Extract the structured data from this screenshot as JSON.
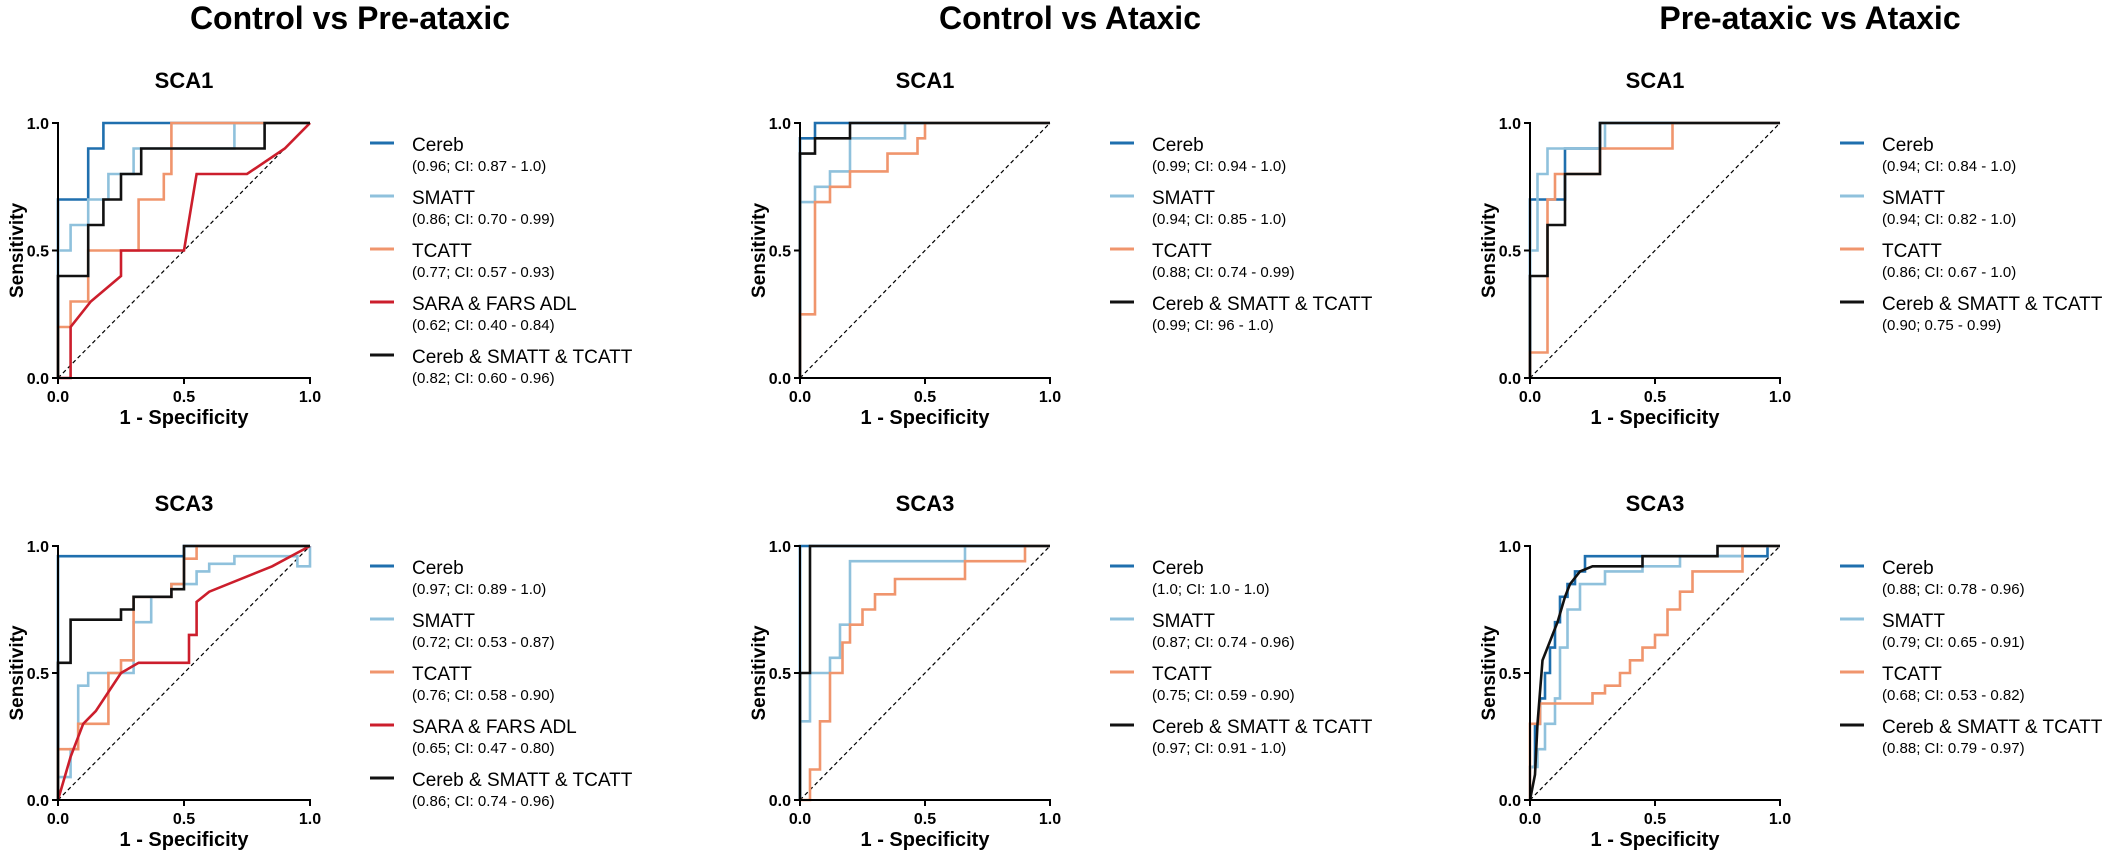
{
  "column_titles": [
    "Control vs Pre-ataxic",
    "Control vs Ataxic",
    "Pre-ataxic vs Ataxic"
  ],
  "colors": {
    "Cereb": "#1f6fae",
    "SMATT": "#8fc1dc",
    "TCATT": "#f0956d",
    "SARA & FARS ADL": "#cc1e2c",
    "Cereb & SMATT & TCATT": "#111111"
  },
  "chart_data": [
    {
      "type": "line",
      "title": "SCA1",
      "xlabel": "1 - Specificity",
      "ylabel": "Sensitivity",
      "xlim": [
        0,
        1
      ],
      "ylim": [
        0,
        1
      ],
      "xticks": [
        "0.0",
        "0.5",
        "1.0"
      ],
      "yticks": [
        "0.0",
        "0.5",
        "1.0"
      ],
      "diagonal": true,
      "legend_position": "right",
      "series": [
        {
          "name": "Cereb",
          "ci": "(0.96; CI: 0.87 - 1.0)",
          "x": [
            0,
            0,
            0.12,
            0.12,
            0.18,
            0.18,
            1
          ],
          "y": [
            0,
            0.7,
            0.7,
            0.9,
            0.9,
            1.0,
            1.0
          ]
        },
        {
          "name": "SMATT",
          "ci": "(0.86; CI: 0.70 - 0.99)",
          "x": [
            0,
            0,
            0.05,
            0.05,
            0.12,
            0.12,
            0.2,
            0.2,
            0.3,
            0.3,
            0.7,
            0.7,
            1
          ],
          "y": [
            0,
            0.5,
            0.5,
            0.6,
            0.6,
            0.7,
            0.7,
            0.8,
            0.8,
            0.9,
            0.9,
            1.0,
            1.0
          ]
        },
        {
          "name": "TCATT",
          "ci": "(0.77; CI: 0.57 - 0.93)",
          "x": [
            0,
            0,
            0.05,
            0.05,
            0.12,
            0.12,
            0.2,
            0.2,
            0.32,
            0.32,
            0.42,
            0.42,
            0.45,
            0.45,
            1
          ],
          "y": [
            0,
            0.2,
            0.2,
            0.3,
            0.3,
            0.5,
            0.5,
            0.5,
            0.5,
            0.7,
            0.7,
            0.8,
            0.8,
            1.0,
            1.0
          ]
        },
        {
          "name": "SARA & FARS ADL",
          "ci": "(0.62; CI: 0.40 - 0.84)",
          "x": [
            0,
            0.05,
            0.05,
            0.13,
            0.25,
            0.25,
            0.5,
            0.55,
            0.75,
            0.9,
            1
          ],
          "y": [
            0,
            0,
            0.2,
            0.3,
            0.4,
            0.5,
            0.5,
            0.8,
            0.8,
            0.9,
            1.0
          ]
        },
        {
          "name": "Cereb & SMATT & TCATT",
          "ci": "(0.82; CI: 0.60 - 0.96)",
          "x": [
            0,
            0,
            0.12,
            0.12,
            0.18,
            0.18,
            0.25,
            0.25,
            0.33,
            0.33,
            0.7,
            0.7,
            0.82,
            0.82,
            1
          ],
          "y": [
            0,
            0.4,
            0.4,
            0.6,
            0.6,
            0.7,
            0.7,
            0.8,
            0.8,
            0.9,
            0.9,
            0.9,
            0.9,
            1.0,
            1.0
          ]
        }
      ]
    },
    {
      "type": "line",
      "title": "SCA1",
      "xlabel": "1 - Specificity",
      "ylabel": "Sensitivity",
      "xlim": [
        0,
        1
      ],
      "ylim": [
        0,
        1
      ],
      "xticks": [
        "0.0",
        "0.5",
        "1.0"
      ],
      "yticks": [
        "0.0",
        "0.5",
        "1.0"
      ],
      "diagonal": true,
      "legend_position": "right",
      "series": [
        {
          "name": "Cereb",
          "ci": "(0.99; CI: 0.94 - 1.0)",
          "x": [
            0,
            0,
            0.06,
            0.06,
            1
          ],
          "y": [
            0,
            0.94,
            0.94,
            1.0,
            1.0
          ]
        },
        {
          "name": "SMATT",
          "ci": "(0.94; CI: 0.85 - 1.0)",
          "x": [
            0,
            0,
            0.06,
            0.06,
            0.12,
            0.12,
            0.2,
            0.2,
            0.42,
            0.42,
            1
          ],
          "y": [
            0,
            0.69,
            0.69,
            0.75,
            0.75,
            0.81,
            0.81,
            0.94,
            0.94,
            1.0,
            1.0
          ]
        },
        {
          "name": "TCATT",
          "ci": "(0.88; CI: 0.74 - 0.99)",
          "x": [
            0,
            0,
            0.06,
            0.06,
            0.12,
            0.12,
            0.2,
            0.2,
            0.35,
            0.35,
            0.47,
            0.47,
            0.5,
            0.5,
            1
          ],
          "y": [
            0,
            0.25,
            0.25,
            0.69,
            0.69,
            0.75,
            0.75,
            0.81,
            0.81,
            0.88,
            0.88,
            0.94,
            0.94,
            1.0,
            1.0
          ]
        },
        {
          "name": "Cereb & SMATT & TCATT",
          "ci": "(0.99; CI: 96 - 1.0)",
          "x": [
            0,
            0,
            0.06,
            0.06,
            0.12,
            0.12,
            0.2,
            0.2,
            1
          ],
          "y": [
            0,
            0.88,
            0.88,
            0.94,
            0.94,
            0.94,
            0.94,
            1.0,
            1.0
          ]
        }
      ]
    },
    {
      "type": "line",
      "title": "SCA1",
      "xlabel": "1 - Specificity",
      "ylabel": "Sensitivity",
      "xlim": [
        0,
        1
      ],
      "ylim": [
        0,
        1
      ],
      "xticks": [
        "0.0",
        "0.5",
        "1.0"
      ],
      "yticks": [
        "0.0",
        "0.5",
        "1.0"
      ],
      "diagonal": true,
      "legend_position": "right",
      "series": [
        {
          "name": "Cereb",
          "ci": "(0.94; CI: 0.84 - 1.0)",
          "x": [
            0,
            0,
            0.14,
            0.14,
            0.28,
            0.28,
            1
          ],
          "y": [
            0,
            0.7,
            0.7,
            0.9,
            0.9,
            1.0,
            1.0
          ]
        },
        {
          "name": "SMATT",
          "ci": "(0.94; CI: 0.82 - 1.0)",
          "x": [
            0,
            0,
            0.03,
            0.03,
            0.07,
            0.07,
            0.3,
            0.3,
            1
          ],
          "y": [
            0,
            0.5,
            0.5,
            0.8,
            0.8,
            0.9,
            0.9,
            1.0,
            1.0
          ]
        },
        {
          "name": "TCATT",
          "ci": "(0.86; CI: 0.67 - 1.0)",
          "x": [
            0,
            0,
            0.07,
            0.07,
            0.1,
            0.1,
            0.28,
            0.28,
            0.57,
            0.57,
            1
          ],
          "y": [
            0,
            0.1,
            0.1,
            0.7,
            0.7,
            0.8,
            0.8,
            0.9,
            0.9,
            1.0,
            1.0
          ]
        },
        {
          "name": "Cereb & SMATT & TCATT",
          "ci": "(0.90; 0.75 - 0.99)",
          "x": [
            0,
            0,
            0.07,
            0.07,
            0.14,
            0.14,
            0.28,
            0.28,
            1
          ],
          "y": [
            0,
            0.4,
            0.4,
            0.6,
            0.6,
            0.8,
            0.8,
            1.0,
            1.0
          ]
        }
      ]
    },
    {
      "type": "line",
      "title": "SCA3",
      "xlabel": "1 - Specificity",
      "ylabel": "Sensitivity",
      "xlim": [
        0,
        1
      ],
      "ylim": [
        0,
        1
      ],
      "xticks": [
        "0.0",
        "0.5",
        "1.0"
      ],
      "yticks": [
        "0.0",
        "0.5",
        "1.0"
      ],
      "diagonal": true,
      "legend_position": "right",
      "series": [
        {
          "name": "Cereb",
          "ci": "(0.97; CI: 0.89 - 1.0)",
          "x": [
            0,
            0,
            0.5,
            0.5,
            1
          ],
          "y": [
            0,
            0.96,
            0.96,
            1.0,
            1.0
          ]
        },
        {
          "name": "SMATT",
          "ci": "(0.72; CI: 0.53 - 0.87)",
          "x": [
            0,
            0,
            0.05,
            0.05,
            0.08,
            0.08,
            0.12,
            0.12,
            0.2,
            0.2,
            0.3,
            0.3,
            0.37,
            0.37,
            0.45,
            0.45,
            0.55,
            0.55,
            0.6,
            0.6,
            0.7,
            0.7,
            0.95,
            0.95,
            1.0,
            1.0
          ],
          "y": [
            0,
            0.09,
            0.09,
            0.2,
            0.2,
            0.45,
            0.45,
            0.5,
            0.5,
            0.5,
            0.5,
            0.7,
            0.7,
            0.8,
            0.8,
            0.85,
            0.85,
            0.9,
            0.9,
            0.93,
            0.93,
            0.96,
            0.96,
            0.92,
            0.92,
            1.0
          ]
        },
        {
          "name": "TCATT",
          "ci": "(0.76; CI: 0.58 - 0.90)",
          "x": [
            0,
            0,
            0.08,
            0.08,
            0.2,
            0.2,
            0.25,
            0.25,
            0.3,
            0.3,
            0.45,
            0.45,
            0.5,
            0.5,
            0.55,
            0.55,
            0.6,
            0.6,
            1
          ],
          "y": [
            0,
            0.2,
            0.2,
            0.3,
            0.3,
            0.5,
            0.5,
            0.55,
            0.55,
            0.8,
            0.8,
            0.85,
            0.85,
            0.95,
            0.95,
            1.0,
            1.0,
            1.0,
            1.0
          ]
        },
        {
          "name": "SARA & FARS ADL",
          "ci": "(0.65; CI: 0.47 - 0.80)",
          "x": [
            0,
            0.05,
            0.05,
            0.1,
            0.15,
            0.25,
            0.32,
            0.42,
            0.52,
            0.52,
            0.55,
            0.55,
            0.6,
            0.85,
            1
          ],
          "y": [
            0,
            0.17,
            0.17,
            0.3,
            0.35,
            0.5,
            0.54,
            0.54,
            0.54,
            0.65,
            0.65,
            0.78,
            0.82,
            0.92,
            1.0
          ]
        },
        {
          "name": "Cereb & SMATT & TCATT",
          "ci": "(0.86; CI: 0.74 - 0.96)",
          "x": [
            0,
            0,
            0.05,
            0.05,
            0.15,
            0.15,
            0.25,
            0.25,
            0.3,
            0.3,
            0.45,
            0.45,
            0.5,
            0.5,
            1
          ],
          "y": [
            0,
            0.54,
            0.54,
            0.71,
            0.71,
            0.71,
            0.71,
            0.75,
            0.75,
            0.8,
            0.8,
            0.83,
            0.83,
            1.0,
            1.0
          ]
        }
      ]
    },
    {
      "type": "line",
      "title": "SCA3",
      "xlabel": "1 - Specificity",
      "ylabel": "Sensitivity",
      "xlim": [
        0,
        1
      ],
      "ylim": [
        0,
        1
      ],
      "xticks": [
        "0.0",
        "0.5",
        "1.0"
      ],
      "yticks": [
        "0.0",
        "0.5",
        "1.0"
      ],
      "diagonal": true,
      "legend_position": "right",
      "series": [
        {
          "name": "Cereb",
          "ci": "(1.0; CI: 1.0 - 1.0)",
          "x": [
            0,
            0,
            1
          ],
          "y": [
            0,
            1.0,
            1.0
          ]
        },
        {
          "name": "SMATT",
          "ci": "(0.87; CI: 0.74 - 0.96)",
          "x": [
            0,
            0,
            0.04,
            0.04,
            0.08,
            0.08,
            0.12,
            0.12,
            0.16,
            0.16,
            0.2,
            0.2,
            0.66,
            0.66,
            1
          ],
          "y": [
            0,
            0.31,
            0.31,
            0.5,
            0.5,
            0.5,
            0.5,
            0.56,
            0.56,
            0.69,
            0.69,
            0.94,
            0.94,
            1.0,
            1.0
          ]
        },
        {
          "name": "TCATT",
          "ci": "(0.75; CI: 0.59 - 0.90)",
          "x": [
            0,
            0.04,
            0.04,
            0.08,
            0.08,
            0.12,
            0.12,
            0.17,
            0.17,
            0.2,
            0.2,
            0.25,
            0.25,
            0.3,
            0.3,
            0.38,
            0.38,
            0.6,
            0.6,
            0.66,
            0.66,
            0.8,
            0.8,
            0.9,
            0.9,
            1
          ],
          "y": [
            0,
            0,
            0.12,
            0.12,
            0.31,
            0.31,
            0.5,
            0.5,
            0.62,
            0.62,
            0.69,
            0.69,
            0.75,
            0.75,
            0.81,
            0.81,
            0.87,
            0.87,
            0.87,
            0.87,
            0.94,
            0.94,
            0.94,
            0.94,
            1.0,
            1.0
          ]
        },
        {
          "name": "Cereb & SMATT & TCATT",
          "ci": "(0.97; CI: 0.91 - 1.0)",
          "x": [
            0,
            0,
            0.04,
            0.04,
            1
          ],
          "y": [
            0,
            0.5,
            0.5,
            1.0,
            1.0
          ]
        }
      ]
    },
    {
      "type": "line",
      "title": "SCA3",
      "xlabel": "1 - Specificity",
      "ylabel": "Sensitivity",
      "xlim": [
        0,
        1
      ],
      "ylim": [
        0,
        1
      ],
      "xticks": [
        "0.0",
        "0.5",
        "1.0"
      ],
      "yticks": [
        "0.0",
        "0.5",
        "1.0"
      ],
      "diagonal": true,
      "legend_position": "right",
      "series": [
        {
          "name": "Cereb",
          "ci": "(0.88; CI: 0.78 - 0.96)",
          "x": [
            0,
            0,
            0.02,
            0.02,
            0.04,
            0.04,
            0.06,
            0.06,
            0.08,
            0.08,
            0.1,
            0.1,
            0.12,
            0.12,
            0.15,
            0.15,
            0.18,
            0.18,
            0.22,
            0.22,
            0.5,
            0.5,
            0.95,
            0.95,
            1
          ],
          "y": [
            0,
            0.13,
            0.13,
            0.3,
            0.3,
            0.4,
            0.4,
            0.5,
            0.5,
            0.6,
            0.6,
            0.7,
            0.7,
            0.8,
            0.8,
            0.85,
            0.85,
            0.9,
            0.9,
            0.96,
            0.96,
            0.96,
            0.96,
            1.0,
            1.0
          ]
        },
        {
          "name": "SMATT",
          "ci": "(0.79; CI: 0.65 - 0.91)",
          "x": [
            0,
            0,
            0.03,
            0.03,
            0.06,
            0.06,
            0.1,
            0.1,
            0.12,
            0.12,
            0.15,
            0.15,
            0.2,
            0.2,
            0.3,
            0.3,
            0.45,
            0.45,
            0.6,
            0.6,
            0.85,
            0.85,
            1
          ],
          "y": [
            0,
            0.13,
            0.13,
            0.2,
            0.2,
            0.3,
            0.3,
            0.4,
            0.4,
            0.6,
            0.6,
            0.75,
            0.75,
            0.85,
            0.85,
            0.9,
            0.9,
            0.92,
            0.92,
            0.96,
            0.96,
            1.0,
            1.0
          ]
        },
        {
          "name": "TCATT",
          "ci": "(0.68; CI: 0.53 - 0.82)",
          "x": [
            0,
            0,
            0.04,
            0.04,
            0.14,
            0.14,
            0.25,
            0.25,
            0.3,
            0.3,
            0.36,
            0.36,
            0.4,
            0.4,
            0.45,
            0.45,
            0.5,
            0.5,
            0.55,
            0.55,
            0.6,
            0.6,
            0.65,
            0.65,
            0.85,
            0.85,
            1
          ],
          "y": [
            0,
            0.3,
            0.3,
            0.38,
            0.38,
            0.38,
            0.38,
            0.42,
            0.42,
            0.45,
            0.45,
            0.5,
            0.5,
            0.55,
            0.55,
            0.6,
            0.6,
            0.65,
            0.65,
            0.75,
            0.75,
            0.82,
            0.82,
            0.9,
            0.9,
            1.0,
            1.0
          ]
        },
        {
          "name": "Cereb & SMATT & TCATT",
          "ci": "(0.88; CI: 0.79 - 0.97)",
          "x": [
            0,
            0.02,
            0.02,
            0.03,
            0.03,
            0.05,
            0.05,
            0.07,
            0.07,
            0.09,
            0.09,
            0.11,
            0.11,
            0.14,
            0.14,
            0.16,
            0.16,
            0.2,
            0.2,
            0.25,
            0.25,
            0.45,
            0.45,
            0.75,
            0.75,
            1
          ],
          "y": [
            0,
            0.1,
            0.1,
            0.3,
            0.3,
            0.55,
            0.55,
            0.6,
            0.6,
            0.65,
            0.65,
            0.7,
            0.7,
            0.8,
            0.8,
            0.85,
            0.85,
            0.9,
            0.9,
            0.92,
            0.92,
            0.92,
            0.96,
            0.96,
            1.0,
            1.0
          ]
        }
      ]
    }
  ]
}
